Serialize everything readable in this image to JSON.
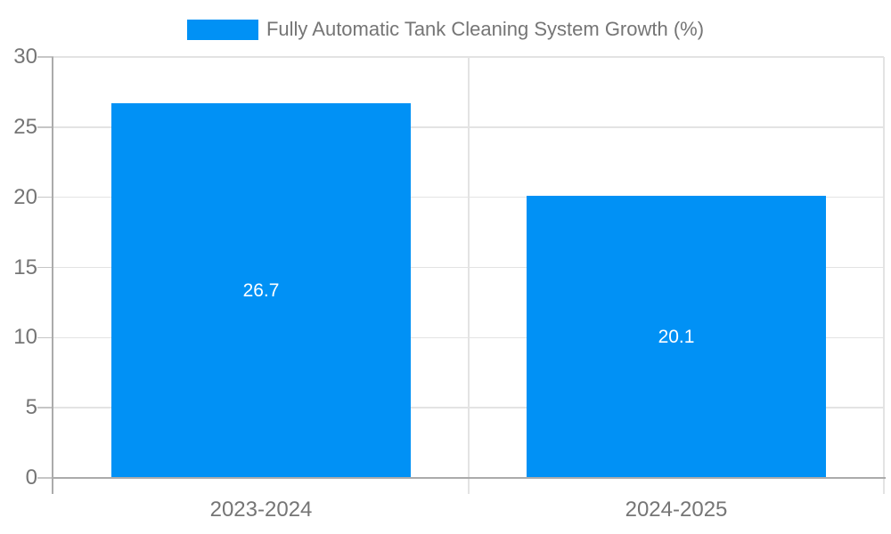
{
  "chart_data": {
    "type": "bar",
    "title": "Fully Automatic Tank Cleaning System Growth (%)",
    "categories": [
      "2023-2024",
      "2024-2025"
    ],
    "values": [
      26.7,
      20.1
    ],
    "value_labels": [
      "26.7",
      "20.1"
    ],
    "xlabel": "",
    "ylabel": "",
    "ylim": [
      0,
      30
    ],
    "yticks": [
      0,
      5,
      10,
      15,
      20,
      25,
      30
    ],
    "ytick_labels": [
      "0",
      "5",
      "10",
      "15",
      "20",
      "25",
      "30"
    ],
    "grid": true,
    "legend": {
      "position": "top-center",
      "entries": [
        "Fully Automatic Tank Cleaning System Growth (%)"
      ]
    }
  },
  "colors": {
    "bar": "#0191f5",
    "bar_label_text": "#ffffff",
    "axis_line": "#ababab",
    "tick_mark": "#c6c6c6",
    "gridline": "#e3e3e3",
    "tick_text": "#757575",
    "legend_text": "#757575",
    "background": "#ffffff"
  }
}
